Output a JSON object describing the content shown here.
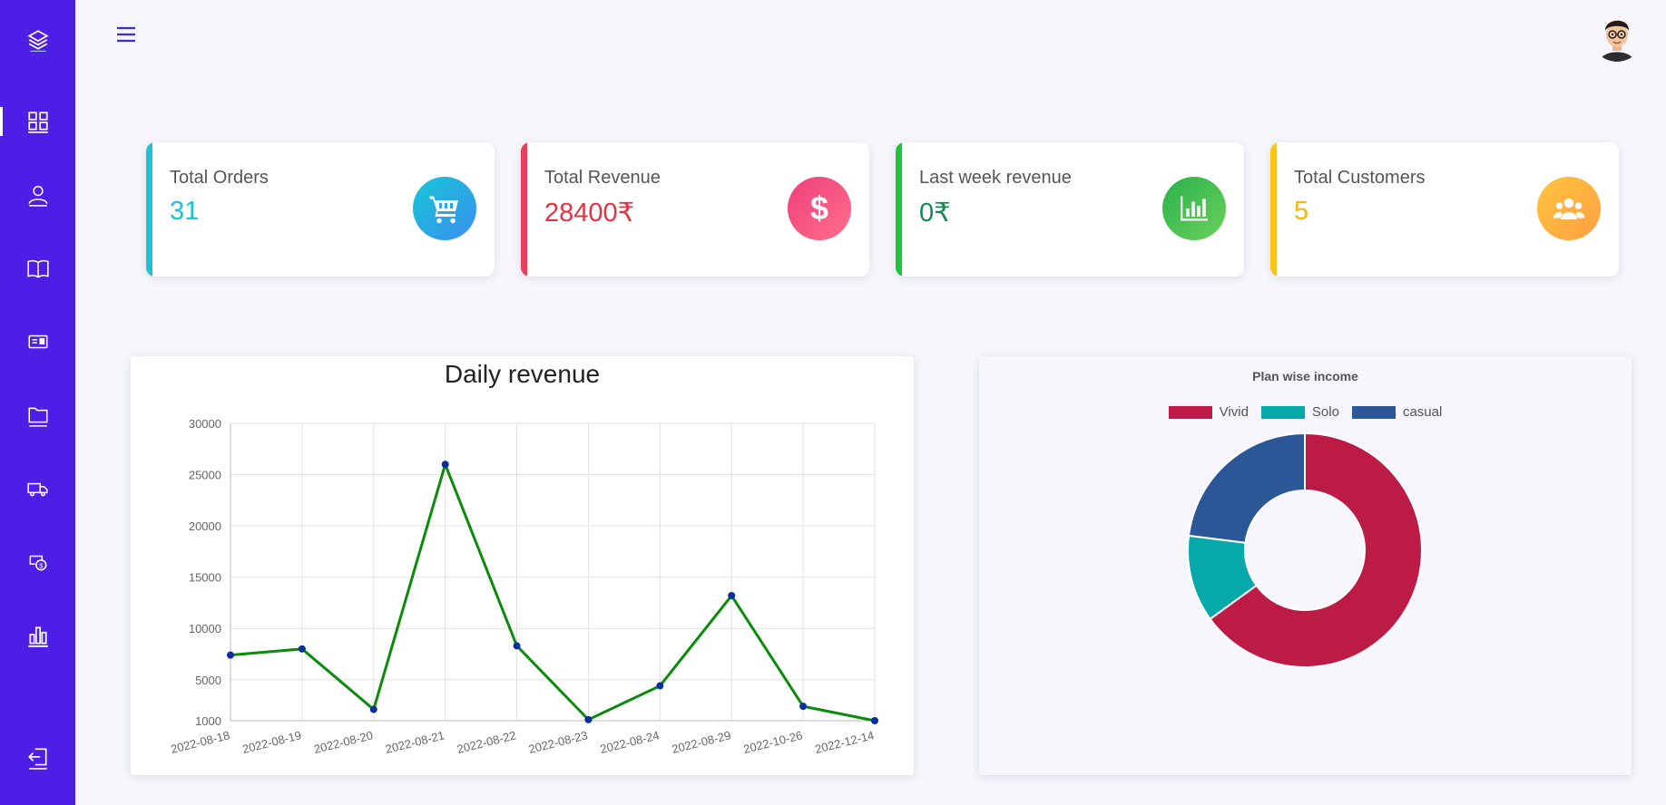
{
  "sidebar": {
    "logo_icon": "layers-icon",
    "items": [
      {
        "icon": "dashboard-grid-icon",
        "active": true
      },
      {
        "icon": "user-icon"
      },
      {
        "icon": "book-icon"
      },
      {
        "icon": "id-card-icon"
      },
      {
        "icon": "folder-icon"
      },
      {
        "icon": "truck-icon"
      },
      {
        "icon": "money-icon"
      },
      {
        "icon": "bar-chart-icon"
      }
    ],
    "logout_icon": "logout-icon"
  },
  "topbar": {
    "menu_icon": "hamburger-icon",
    "avatar_icon": "user-avatar"
  },
  "stats": [
    {
      "label": "Total Orders",
      "value": "31",
      "color": "#1cc2d8",
      "icon": "cart-icon"
    },
    {
      "label": "Total Revenue",
      "value": "28400₹",
      "color": "#dc3545",
      "icon": "dollar-icon"
    },
    {
      "label": "Last week revenue",
      "value": "0₹",
      "color": "#198754",
      "icon": "bar-chart-icon"
    },
    {
      "label": "Total Customers",
      "value": "5",
      "color": "#ffc107",
      "icon": "users-icon"
    }
  ],
  "colors": {
    "sidebar_bg": "#4f1ee6",
    "line_color": "#0b8a0b",
    "point_color": "#0a2f9c",
    "vivid": "#bb1b45",
    "solo": "#06a9a9",
    "casual": "#2b5797"
  },
  "chart_data": [
    {
      "type": "line",
      "title": "Daily revenue",
      "x": [
        "2022-08-18",
        "2022-08-19",
        "2022-08-20",
        "2022-08-21",
        "2022-08-22",
        "2022-08-23",
        "2022-08-24",
        "2022-08-29",
        "2022-10-26",
        "2022-12-14"
      ],
      "series": [
        {
          "values": [
            7400,
            8000,
            2100,
            26000,
            8300,
            1100,
            4400,
            13200,
            2400,
            1000
          ]
        }
      ],
      "ylim": [
        1000,
        30000
      ],
      "yticks": [
        1000,
        5000,
        10000,
        15000,
        20000,
        25000,
        30000
      ],
      "grid": true
    },
    {
      "type": "pie",
      "title": "Plan wise income",
      "categories": [
        "Vivid",
        "Solo",
        "casual"
      ],
      "values": [
        65,
        12,
        23
      ],
      "legend": "top"
    }
  ]
}
